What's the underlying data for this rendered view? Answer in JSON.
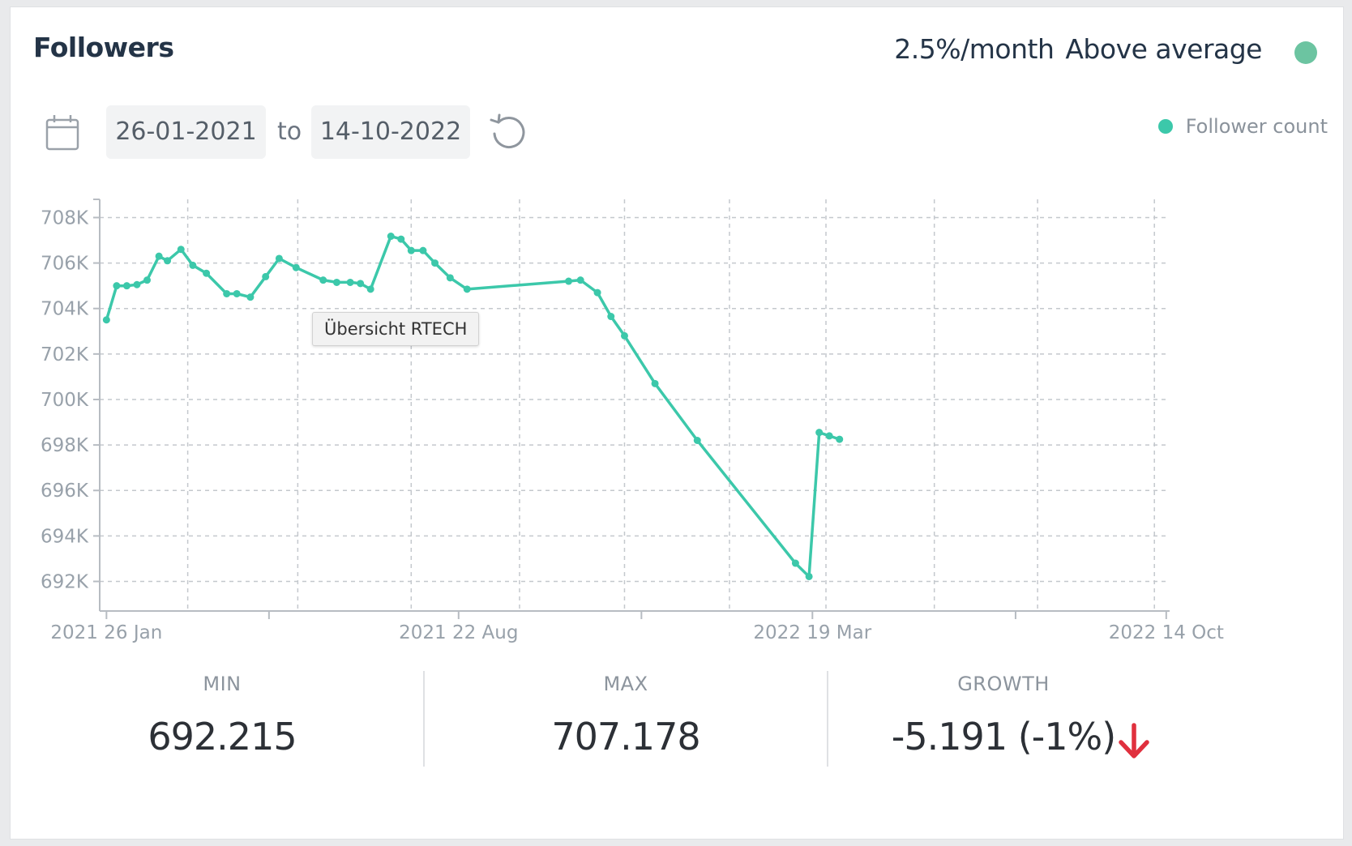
{
  "header": {
    "title": "Followers",
    "rate": "2.5%/month",
    "rating": "Above average",
    "rating_color": "#6cc4a1"
  },
  "date_range": {
    "from": "26-01-2021",
    "separator": "to",
    "to": "14-10-2022"
  },
  "tooltip": "Übersicht RTECH",
  "chart_data": {
    "type": "line",
    "title": "",
    "legend": {
      "label": "Follower count",
      "position": "top-right"
    },
    "color": "#3cc8aa",
    "xlim": [
      "2021-01-22",
      "2022-10-16"
    ],
    "ylim": [
      690700,
      708800
    ],
    "y_ticks": [
      692000,
      694000,
      696000,
      698000,
      700000,
      702000,
      704000,
      706000,
      708000
    ],
    "y_tick_labels": [
      "692K",
      "694K",
      "696K",
      "698K",
      "700K",
      "702K",
      "704K",
      "706K",
      "708K"
    ],
    "x_labels": [
      {
        "date": "2021-01-26",
        "label": "2021 26 Jan"
      },
      {
        "date": "2021-08-22",
        "label": "2021 22 Aug"
      },
      {
        "date": "2022-03-19",
        "label": "2022 19 Mar"
      },
      {
        "date": "2022-10-14",
        "label": "2022 14 Oct"
      }
    ],
    "x_grid": [
      "2021-03-15",
      "2021-05-19",
      "2021-07-25",
      "2021-09-27",
      "2021-11-28",
      "2022-01-29",
      "2022-03-27",
      "2022-05-30",
      "2022-07-30",
      "2022-10-07"
    ],
    "x_minor_ticks": [
      "2021-05-02",
      "2021-12-08",
      "2022-07-17"
    ],
    "grid": true,
    "series": [
      {
        "name": "Follower count",
        "points": [
          [
            "2021-01-26",
            703500
          ],
          [
            "2021-02-01",
            705000
          ],
          [
            "2021-02-07",
            705000
          ],
          [
            "2021-02-13",
            705050
          ],
          [
            "2021-02-19",
            705250
          ],
          [
            "2021-02-26",
            706300
          ],
          [
            "2021-03-03",
            706100
          ],
          [
            "2021-03-11",
            706600
          ],
          [
            "2021-03-18",
            705900
          ],
          [
            "2021-03-26",
            705550
          ],
          [
            "2021-04-07",
            704650
          ],
          [
            "2021-04-13",
            704650
          ],
          [
            "2021-04-21",
            704500
          ],
          [
            "2021-04-30",
            705400
          ],
          [
            "2021-05-08",
            706200
          ],
          [
            "2021-05-18",
            705800
          ],
          [
            "2021-06-03",
            705250
          ],
          [
            "2021-06-11",
            705150
          ],
          [
            "2021-06-19",
            705150
          ],
          [
            "2021-06-25",
            705100
          ],
          [
            "2021-07-01",
            704850
          ],
          [
            "2021-07-13",
            707178
          ],
          [
            "2021-07-19",
            707050
          ],
          [
            "2021-07-25",
            706550
          ],
          [
            "2021-08-01",
            706550
          ],
          [
            "2021-08-08",
            706000
          ],
          [
            "2021-08-17",
            705350
          ],
          [
            "2021-08-27",
            704850
          ],
          [
            "2021-10-26",
            705200
          ],
          [
            "2021-11-02",
            705250
          ],
          [
            "2021-11-12",
            704700
          ],
          [
            "2021-11-20",
            703650
          ],
          [
            "2021-11-28",
            702800
          ],
          [
            "2021-12-16",
            700700
          ],
          [
            "2022-01-10",
            698200
          ],
          [
            "2022-03-09",
            692800
          ],
          [
            "2022-03-17",
            692215
          ],
          [
            "2022-03-23",
            698550
          ],
          [
            "2022-03-29",
            698400
          ],
          [
            "2022-04-04",
            698250
          ]
        ]
      }
    ]
  },
  "stats": {
    "min_label": "MIN",
    "min_value": "692.215",
    "max_label": "MAX",
    "max_value": "707.178",
    "growth_label": "GROWTH",
    "growth_value": "-5.191 (-1%)",
    "growth_color": "#e0303e"
  },
  "icons": {
    "calendar": "calendar-icon",
    "reset": "reset-icon",
    "trend": "arrow-down-icon"
  }
}
